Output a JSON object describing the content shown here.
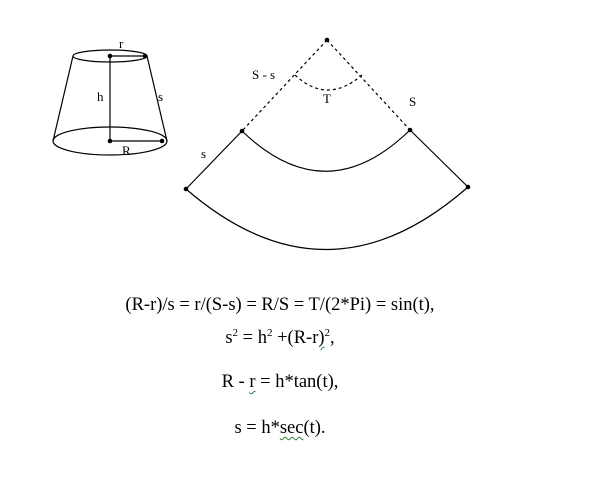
{
  "figure": {
    "frustum_labels": {
      "top_radius": "r",
      "height": "h",
      "slant": "s",
      "bottom_radius": "R"
    },
    "development_labels": {
      "inner_slant": "S - s",
      "angle": "T",
      "outer_slant": "S",
      "side_slant": "s"
    }
  },
  "equations": {
    "line1": "(R-r)/s = r/(S-s) = R/S = T/(2*Pi) = sin(t),",
    "line2": {
      "base1": "s",
      "exp1": "2",
      "eq": " = h",
      "exp2": "2",
      "plus": " +(R-r",
      "close": ")",
      "exp3": "2",
      "tail": ","
    },
    "line3": {
      "pre": "R - ",
      "mark": "r",
      "post": " = h*tan(t),"
    },
    "line4": {
      "pre": "s = h*",
      "mark": "sec",
      "post": "(t)."
    }
  }
}
